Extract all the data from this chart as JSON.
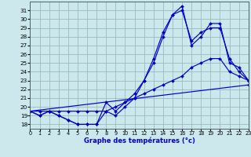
{
  "title": "",
  "xlabel": "Graphe des températures (°c)",
  "ylabel": "",
  "bg_color": "#cce8ec",
  "line_color": "#0000cc",
  "grid_color": "#99bbbd",
  "xlim": [
    0,
    23
  ],
  "ylim": [
    17.5,
    32.0
  ],
  "xticks": [
    0,
    1,
    2,
    3,
    4,
    5,
    6,
    7,
    8,
    9,
    10,
    11,
    12,
    13,
    14,
    15,
    16,
    17,
    18,
    19,
    20,
    21,
    22,
    23
  ],
  "yticks": [
    18,
    19,
    20,
    21,
    22,
    23,
    24,
    25,
    26,
    27,
    28,
    29,
    30,
    31
  ],
  "series": [
    {
      "x": [
        0,
        1,
        2,
        3,
        4,
        5,
        6,
        7,
        8,
        9,
        10,
        11,
        12,
        13,
        14,
        15,
        16,
        17,
        18,
        19,
        20,
        21,
        22,
        23
      ],
      "y": [
        19.5,
        19.0,
        19.5,
        19.0,
        18.5,
        18.0,
        18.0,
        18.0,
        19.5,
        19.0,
        20.0,
        21.0,
        23.0,
        25.0,
        28.0,
        30.5,
        31.0,
        27.5,
        28.5,
        29.0,
        29.0,
        25.5,
        24.0,
        23.0
      ]
    },
    {
      "x": [
        0,
        1,
        2,
        3,
        4,
        5,
        6,
        7,
        8,
        9,
        10,
        11,
        12,
        13,
        14,
        15,
        16,
        17,
        18,
        19,
        20,
        21,
        22,
        23
      ],
      "y": [
        19.5,
        19.0,
        19.5,
        19.0,
        18.5,
        18.0,
        18.0,
        18.0,
        20.5,
        19.5,
        20.5,
        21.5,
        23.0,
        25.5,
        28.5,
        30.5,
        31.5,
        27.0,
        28.0,
        29.5,
        29.5,
        25.0,
        24.5,
        23.0
      ]
    },
    {
      "x": [
        0,
        1,
        2,
        3,
        4,
        5,
        6,
        7,
        8,
        9,
        10,
        11,
        12,
        13,
        14,
        15,
        16,
        17,
        18,
        19,
        20,
        21,
        22,
        23
      ],
      "y": [
        19.5,
        19.5,
        19.5,
        19.5,
        19.5,
        19.5,
        19.5,
        19.5,
        19.5,
        20.0,
        20.5,
        21.0,
        21.5,
        22.0,
        22.5,
        23.0,
        23.5,
        24.5,
        25.0,
        25.5,
        25.5,
        24.0,
        23.5,
        23.0
      ]
    },
    {
      "x": [
        0,
        23
      ],
      "y": [
        19.5,
        22.5
      ]
    }
  ]
}
